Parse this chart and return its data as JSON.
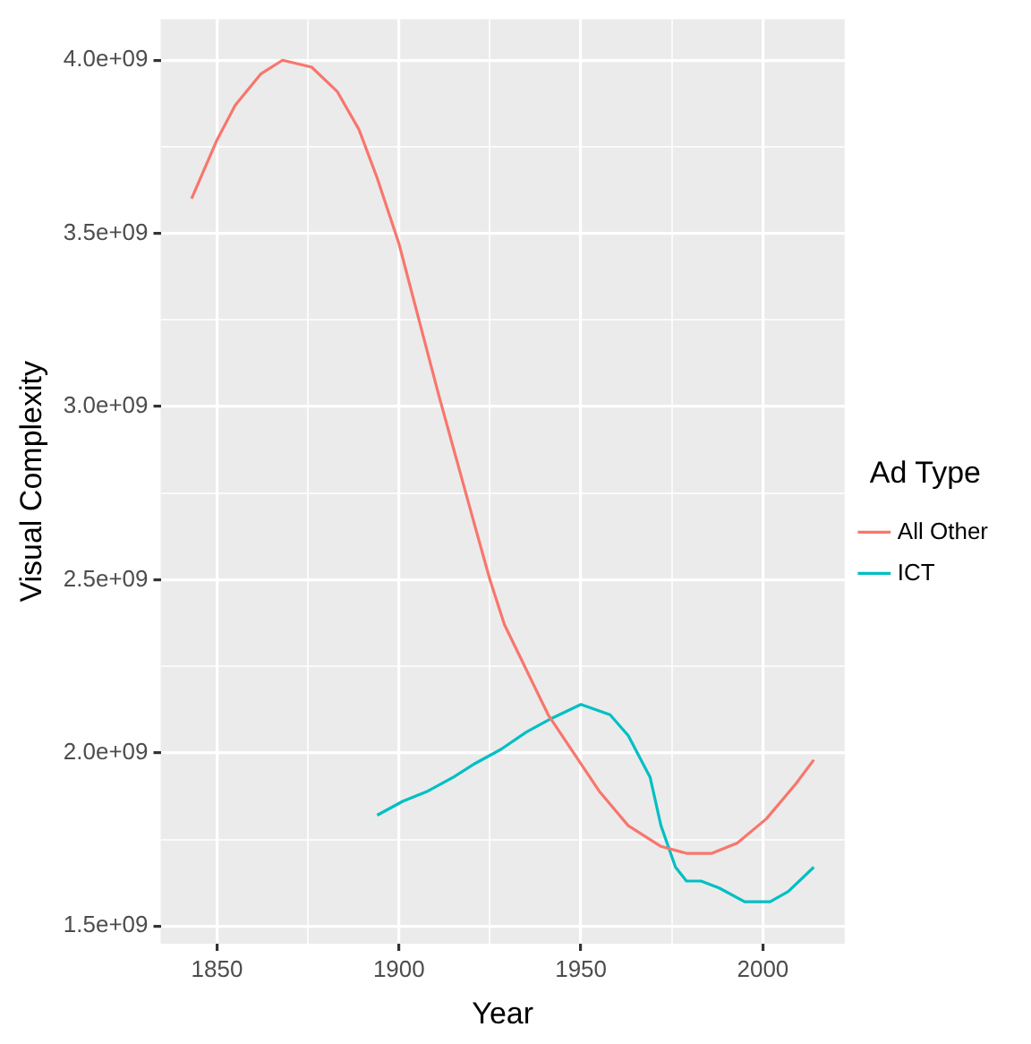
{
  "chart_data": {
    "type": "line",
    "xlabel": "Year",
    "ylabel": "Visual Complexity",
    "legend_title": "Ad Type",
    "legend": "right",
    "grid": true,
    "marker": "none",
    "line_style": "solid",
    "xlim": [
      1834.5,
      2022.5
    ],
    "ylim": [
      1449000000,
      4118000000
    ],
    "xticks": [
      1850,
      {
        "value": 1875,
        "label": null
      },
      1900,
      {
        "value": 1925,
        "label": null
      },
      1950,
      {
        "value": 1975,
        "label": null
      },
      2000
    ],
    "yticks": [
      {
        "value": 1500000000,
        "label": "1.5e+09"
      },
      {
        "value": 1750000000,
        "label": null
      },
      {
        "value": 2000000000,
        "label": "2.0e+09"
      },
      {
        "value": 2250000000,
        "label": null
      },
      {
        "value": 2500000000,
        "label": "2.5e+09"
      },
      {
        "value": 2750000000,
        "label": null
      },
      {
        "value": 3000000000,
        "label": "3.0e+09"
      },
      {
        "value": 3250000000,
        "label": null
      },
      {
        "value": 3500000000,
        "label": "3.5e+09"
      },
      {
        "value": 3750000000,
        "label": null
      },
      {
        "value": 4000000000,
        "label": "4.0e+09"
      }
    ],
    "series": [
      {
        "name": "All Other",
        "color": "#f8766d",
        "x": [
          1843,
          1850,
          1855,
          1862,
          1868,
          1876,
          1883,
          1889,
          1894,
          1900,
          1905,
          1911,
          1916,
          1921,
          1925,
          1929,
          1935,
          1941,
          1948,
          1955,
          1963,
          1972,
          1979,
          1986,
          1993,
          2001,
          2009,
          2014
        ],
        "values": [
          3600000000,
          3770000000,
          3870000000,
          3960000000,
          4000000000,
          3980000000,
          3910000000,
          3800000000,
          3660000000,
          3470000000,
          3270000000,
          3030000000,
          2840000000,
          2650000000,
          2500000000,
          2370000000,
          2240000000,
          2110000000,
          2000000000,
          1890000000,
          1790000000,
          1730000000,
          1710000000,
          1710000000,
          1740000000,
          1810000000,
          1910000000,
          1980000000
        ]
      },
      {
        "name": "ICT",
        "color": "#00bfc4",
        "x": [
          1894,
          1901,
          1908,
          1915,
          1921,
          1928,
          1935,
          1942,
          1950,
          1958,
          1963,
          1969,
          1972,
          1976,
          1979,
          1983,
          1988,
          1995,
          2002,
          2007,
          2014
        ],
        "values": [
          1820000000,
          1860000000,
          1890000000,
          1930000000,
          1970000000,
          2010000000,
          2060000000,
          2100000000,
          2140000000,
          2110000000,
          2050000000,
          1930000000,
          1790000000,
          1670000000,
          1630000000,
          1630000000,
          1610000000,
          1570000000,
          1570000000,
          1600000000,
          1670000000
        ]
      }
    ]
  }
}
